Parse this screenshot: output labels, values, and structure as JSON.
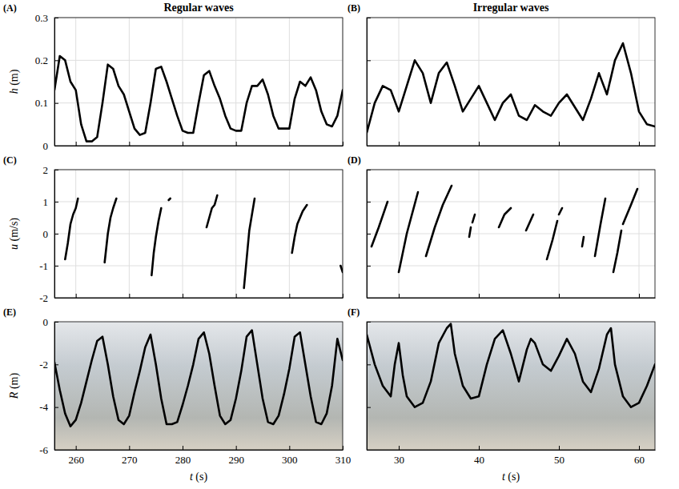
{
  "chart_data": [
    {
      "type": "line",
      "title": "Regular waves",
      "annotations": [
        "(A)"
      ],
      "ylabel": "h (m)",
      "xlim": [
        256,
        310
      ],
      "xticks": [
        260,
        270,
        280,
        290,
        300,
        310
      ],
      "ylim": [
        0,
        0.3
      ],
      "yticks": [
        0,
        0.1,
        0.2,
        0.3
      ],
      "grid": true,
      "tick_labels": "y",
      "color": "#000000",
      "x": [
        256,
        257,
        258,
        259,
        260,
        261,
        262,
        263,
        264,
        265,
        266,
        267,
        268,
        269,
        270,
        271,
        272,
        273,
        274,
        275,
        276,
        277,
        278,
        279,
        280,
        281,
        282,
        283,
        284,
        285,
        286,
        287,
        288,
        289,
        290,
        291,
        292,
        293,
        294,
        295,
        296,
        297,
        298,
        299,
        300,
        301,
        302,
        303,
        304,
        305,
        306,
        307,
        308,
        309,
        310
      ],
      "values": [
        0.13,
        0.21,
        0.2,
        0.15,
        0.13,
        0.05,
        0.01,
        0.01,
        0.02,
        0.1,
        0.19,
        0.18,
        0.14,
        0.12,
        0.08,
        0.04,
        0.025,
        0.03,
        0.1,
        0.18,
        0.185,
        0.15,
        0.11,
        0.07,
        0.035,
        0.03,
        0.03,
        0.1,
        0.165,
        0.175,
        0.14,
        0.11,
        0.07,
        0.04,
        0.035,
        0.035,
        0.1,
        0.14,
        0.14,
        0.155,
        0.12,
        0.07,
        0.04,
        0.04,
        0.04,
        0.11,
        0.15,
        0.14,
        0.16,
        0.13,
        0.08,
        0.05,
        0.045,
        0.07,
        0.13
      ]
    },
    {
      "type": "line",
      "title": "Irregular waves",
      "annotations": [
        "(B)"
      ],
      "xlim": [
        26,
        62
      ],
      "xticks": [
        30,
        40,
        50,
        60
      ],
      "ylim": [
        0,
        0.3
      ],
      "yticks": [
        0,
        0.1,
        0.2,
        0.3
      ],
      "grid": true,
      "tick_labels": false,
      "color": "#000000",
      "x": [
        26,
        27,
        28,
        29,
        30,
        31,
        32,
        33,
        34,
        35,
        36,
        37,
        38,
        39,
        40,
        41,
        42,
        43,
        44,
        45,
        46,
        47,
        48,
        49,
        50,
        51,
        52,
        53,
        54,
        55,
        56,
        57,
        58,
        59,
        60,
        61,
        62
      ],
      "values": [
        0.03,
        0.1,
        0.14,
        0.13,
        0.08,
        0.14,
        0.2,
        0.17,
        0.1,
        0.17,
        0.195,
        0.14,
        0.08,
        0.11,
        0.14,
        0.1,
        0.06,
        0.1,
        0.12,
        0.07,
        0.06,
        0.095,
        0.08,
        0.07,
        0.1,
        0.12,
        0.09,
        0.06,
        0.11,
        0.17,
        0.12,
        0.2,
        0.24,
        0.17,
        0.08,
        0.05,
        0.045
      ]
    },
    {
      "type": "line",
      "annotations": [
        "(C)"
      ],
      "ylabel": "u (m/s)",
      "xlim": [
        256,
        310
      ],
      "xticks": [
        260,
        270,
        280,
        290,
        300,
        310
      ],
      "ylim": [
        -2,
        2
      ],
      "yticks": [
        -2,
        -1,
        0,
        1,
        2
      ],
      "grid": true,
      "tick_labels": "y",
      "color": "#000000",
      "x": [
        258,
        258.5,
        259,
        259.5,
        260,
        260.4,
        262,
        265.4,
        266,
        266.5,
        267,
        267.6,
        270,
        274.2,
        274.6,
        275,
        275.5,
        276,
        277,
        277.4,
        277.7,
        280,
        284.5,
        285,
        285.5,
        286,
        286.5,
        289,
        291.5,
        292,
        292.5,
        293,
        293.5,
        297,
        300.5,
        301,
        301.5,
        302,
        302.5,
        303.3,
        306,
        309.6,
        310
      ],
      "values": [
        -0.8,
        -0.3,
        0.3,
        0.6,
        0.8,
        1.1,
        null,
        -0.9,
        0,
        0.5,
        0.8,
        1.1,
        null,
        -1.3,
        -0.6,
        -0.1,
        0.4,
        0.8,
        null,
        1.05,
        1.1,
        null,
        0.2,
        0.5,
        0.8,
        0.9,
        1.2,
        null,
        -1.7,
        -0.8,
        0.1,
        0.6,
        1.1,
        null,
        -0.6,
        -0.1,
        0.3,
        0.5,
        0.7,
        0.9,
        null,
        -1.0,
        -1.2
      ]
    },
    {
      "type": "line",
      "annotations": [
        "(D)"
      ],
      "xlim": [
        26,
        62
      ],
      "xticks": [
        30,
        40,
        50,
        60
      ],
      "ylim": [
        -2,
        2
      ],
      "yticks": [
        -2,
        -1,
        0,
        1,
        2
      ],
      "grid": true,
      "tick_labels": false,
      "color": "#000000",
      "x": [
        26.6,
        27.5,
        28.6,
        29.3,
        30,
        31,
        32.4,
        32.9,
        33.4,
        34.5,
        35.5,
        36.6,
        37.5,
        38.8,
        39,
        39.1,
        39.2,
        39.5,
        41,
        42.5,
        43.2,
        44,
        45,
        45.9,
        46.8,
        47.5,
        48.5,
        49.2,
        49.8,
        49.9,
        50,
        50.4,
        52,
        52.9,
        53.1,
        54,
        54.5,
        55.2,
        55.8,
        56.3,
        56.8,
        57.3,
        57.8,
        57.9,
        58,
        59,
        59.8
      ],
      "values": [
        -0.4,
        0.2,
        1.0,
        null,
        -1.2,
        0,
        1.3,
        null,
        -0.7,
        0.2,
        0.9,
        1.5,
        null,
        -0.1,
        0.2,
        null,
        0.35,
        0.6,
        null,
        0.2,
        0.6,
        0.8,
        null,
        0.1,
        0.6,
        null,
        -0.8,
        -0.2,
        0.4,
        null,
        0.6,
        0.8,
        null,
        -0.4,
        -0.1,
        null,
        -0.7,
        0.3,
        1.1,
        null,
        -1.2,
        -0.6,
        0.1,
        null,
        0.3,
        0.9,
        1.4
      ]
    },
    {
      "type": "line",
      "annotations": [
        "(E)"
      ],
      "ylabel": "R (m)",
      "xlabel": "t (s)",
      "xlim": [
        256,
        310
      ],
      "xticks": [
        260,
        270,
        280,
        290,
        300,
        310
      ],
      "ylim": [
        -6,
        0
      ],
      "yticks": [
        -6,
        -4,
        -2,
        0
      ],
      "grid": false,
      "tick_labels": true,
      "color": "#000000",
      "x": [
        256,
        257,
        258,
        259,
        260,
        261,
        262,
        263,
        264,
        265,
        266,
        267,
        268,
        269,
        270,
        271,
        272,
        273,
        274,
        275,
        276,
        277,
        278,
        279,
        280,
        281,
        282,
        283,
        284,
        285,
        286,
        287,
        288,
        289,
        290,
        291,
        292,
        293,
        294,
        295,
        296,
        297,
        298,
        299,
        300,
        301,
        302,
        303,
        304,
        305,
        306,
        307,
        308,
        309,
        310
      ],
      "values": [
        -1.9,
        -3.2,
        -4.3,
        -4.9,
        -4.6,
        -3.8,
        -2.8,
        -1.8,
        -0.9,
        -0.7,
        -2.0,
        -3.5,
        -4.6,
        -4.8,
        -4.4,
        -3.3,
        -2.3,
        -1.2,
        -0.6,
        -2.0,
        -3.6,
        -4.8,
        -4.8,
        -4.7,
        -3.9,
        -3.0,
        -2.0,
        -0.8,
        -0.5,
        -1.5,
        -3.0,
        -4.4,
        -4.8,
        -4.6,
        -3.6,
        -2.3,
        -0.7,
        -0.4,
        -2.0,
        -3.6,
        -4.7,
        -4.8,
        -4.4,
        -3.4,
        -2.2,
        -0.7,
        -0.5,
        -2.0,
        -3.5,
        -4.7,
        -4.8,
        -4.3,
        -3.0,
        -0.8,
        -1.8
      ]
    },
    {
      "type": "line",
      "annotations": [
        "(F)"
      ],
      "xlabel": "t (s)",
      "xlim": [
        26,
        62
      ],
      "xticks": [
        30,
        40,
        50,
        60
      ],
      "ylim": [
        -6,
        0
      ],
      "yticks": [
        -6,
        -4,
        -2,
        0
      ],
      "grid": false,
      "tick_labels": "x",
      "color": "#000000",
      "x": [
        26,
        27,
        28,
        29,
        29.5,
        30,
        30.5,
        31,
        32,
        33,
        34,
        35,
        36,
        36.5,
        37,
        38,
        39,
        40,
        41,
        42,
        43,
        44,
        45,
        46,
        46.5,
        47,
        48,
        49,
        50,
        51,
        52,
        53,
        54,
        55,
        56,
        56.5,
        57,
        58,
        59,
        60,
        61,
        62
      ],
      "values": [
        -0.6,
        -2.0,
        -3.0,
        -3.5,
        -2.0,
        -1.0,
        -2.5,
        -3.5,
        -4.0,
        -3.8,
        -2.8,
        -1.0,
        -0.3,
        -0.1,
        -1.5,
        -3.0,
        -3.6,
        -3.5,
        -2.0,
        -0.8,
        -0.4,
        -1.5,
        -2.8,
        -1.3,
        -0.8,
        -1.0,
        -2.0,
        -2.3,
        -1.6,
        -0.8,
        -1.5,
        -2.8,
        -3.3,
        -2.2,
        -0.6,
        -0.3,
        -2.0,
        -3.5,
        -4.0,
        -3.8,
        -3.0,
        -2.0
      ]
    }
  ]
}
